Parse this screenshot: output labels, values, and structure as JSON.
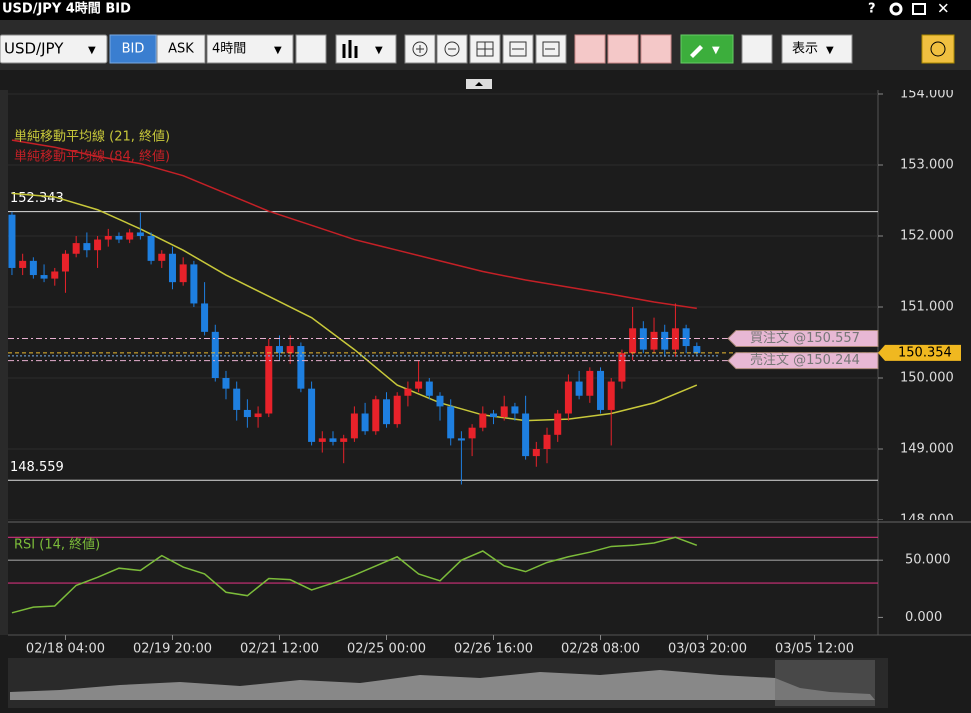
{
  "window": {
    "title": "USD/JPY 4時間 BID"
  },
  "toolbar": {
    "symbol": "USD/JPY",
    "bid": "BID",
    "ask": "ASK",
    "timeframe": "4時間",
    "view": "表示"
  },
  "chart_data": [
    {
      "type": "candlestick",
      "up_color": "#e8222a",
      "down_color": "#1e7fe0",
      "xlim": [
        -0.37,
        80.93
      ],
      "xticks": [
        {
          "value": 5,
          "label": "02/18 04:00"
        },
        {
          "value": 15,
          "label": "02/19 20:00"
        },
        {
          "value": 25,
          "label": "02/21 12:00"
        },
        {
          "value": 35,
          "label": "02/25 00:00"
        },
        {
          "value": 45,
          "label": "02/26 16:00"
        },
        {
          "value": 55,
          "label": "02/28 08:00"
        },
        {
          "value": 65,
          "label": "03/03 20:00"
        },
        {
          "value": 75,
          "label": "03/05 12:00"
        }
      ],
      "ylim": [
        148,
        154
      ],
      "yticks": [
        {
          "value": 148,
          "label": "148.000"
        },
        {
          "value": 149,
          "label": "149.000"
        },
        {
          "value": 150,
          "label": "150.000"
        },
        {
          "value": 151,
          "label": "151.000"
        },
        {
          "value": 152,
          "label": "152.000"
        },
        {
          "value": 153,
          "label": "153.000"
        },
        {
          "value": 154,
          "label": "154.000"
        }
      ],
      "ohlc": [
        [
          152.3,
          152.34,
          151.45,
          151.55
        ],
        [
          151.55,
          151.75,
          151.45,
          151.65
        ],
        [
          151.65,
          151.7,
          151.4,
          151.45
        ],
        [
          151.45,
          151.6,
          151.35,
          151.4
        ],
        [
          151.4,
          151.55,
          151.3,
          151.5
        ],
        [
          151.5,
          151.8,
          151.2,
          151.75
        ],
        [
          151.75,
          152.0,
          151.7,
          151.9
        ],
        [
          151.9,
          152.05,
          151.7,
          151.8
        ],
        [
          151.8,
          152.0,
          151.55,
          151.95
        ],
        [
          151.95,
          152.1,
          151.85,
          152.0
        ],
        [
          152.0,
          152.05,
          151.9,
          151.95
        ],
        [
          151.95,
          152.1,
          151.9,
          152.05
        ],
        [
          152.05,
          152.33,
          151.95,
          152.0
        ],
        [
          152.0,
          152.05,
          151.6,
          151.65
        ],
        [
          151.65,
          151.8,
          151.55,
          151.75
        ],
        [
          151.75,
          151.85,
          151.25,
          151.35
        ],
        [
          151.35,
          151.7,
          151.3,
          151.6
        ],
        [
          151.6,
          151.65,
          151.0,
          151.05
        ],
        [
          151.05,
          151.35,
          150.6,
          150.65
        ],
        [
          150.65,
          150.75,
          149.95,
          150.0
        ],
        [
          150.0,
          150.1,
          149.7,
          149.85
        ],
        [
          149.85,
          149.95,
          149.4,
          149.55
        ],
        [
          149.55,
          149.7,
          149.3,
          149.45
        ],
        [
          149.45,
          149.6,
          149.3,
          149.5
        ],
        [
          149.5,
          150.55,
          149.45,
          150.45
        ],
        [
          150.45,
          150.6,
          150.25,
          150.35
        ],
        [
          150.35,
          150.6,
          150.2,
          150.45
        ],
        [
          150.45,
          150.5,
          149.8,
          149.85
        ],
        [
          149.85,
          149.95,
          149.05,
          149.1
        ],
        [
          149.1,
          149.25,
          148.95,
          149.15
        ],
        [
          149.15,
          149.25,
          149.05,
          149.1
        ],
        [
          149.1,
          149.2,
          148.8,
          149.15
        ],
        [
          149.15,
          149.6,
          149.1,
          149.5
        ],
        [
          149.5,
          149.65,
          149.2,
          149.25
        ],
        [
          149.25,
          149.75,
          149.2,
          149.7
        ],
        [
          149.7,
          149.8,
          149.3,
          149.35
        ],
        [
          149.35,
          149.8,
          149.3,
          149.75
        ],
        [
          149.75,
          149.95,
          149.6,
          149.85
        ],
        [
          149.85,
          150.25,
          149.8,
          149.95
        ],
        [
          149.95,
          150.0,
          149.7,
          149.75
        ],
        [
          149.75,
          149.8,
          149.4,
          149.6
        ],
        [
          149.6,
          149.7,
          149.05,
          149.15
        ],
        [
          149.15,
          149.25,
          148.5,
          149.12
        ],
        [
          149.15,
          149.35,
          148.9,
          149.3
        ],
        [
          149.3,
          149.6,
          149.25,
          149.5
        ],
        [
          149.5,
          149.55,
          149.35,
          149.45
        ],
        [
          149.45,
          149.75,
          149.4,
          149.6
        ],
        [
          149.6,
          149.65,
          149.4,
          149.5
        ],
        [
          149.5,
          149.75,
          148.85,
          148.9
        ],
        [
          148.9,
          149.1,
          148.75,
          149.0
        ],
        [
          149.0,
          149.3,
          148.8,
          149.2
        ],
        [
          149.2,
          149.55,
          149.1,
          149.5
        ],
        [
          149.5,
          150.05,
          149.4,
          149.95
        ],
        [
          149.95,
          150.1,
          149.7,
          149.75
        ],
        [
          149.75,
          150.15,
          149.65,
          150.1
        ],
        [
          150.1,
          150.15,
          149.5,
          149.55
        ],
        [
          149.55,
          150.0,
          149.05,
          149.95
        ],
        [
          149.95,
          150.4,
          149.85,
          150.35
        ],
        [
          150.35,
          151.0,
          150.25,
          150.7
        ],
        [
          150.7,
          150.8,
          150.35,
          150.4
        ],
        [
          150.4,
          150.85,
          150.35,
          150.65
        ],
        [
          150.65,
          150.75,
          150.3,
          150.4
        ],
        [
          150.4,
          151.05,
          150.3,
          150.7
        ],
        [
          150.7,
          150.75,
          150.35,
          150.45
        ],
        [
          150.45,
          150.5,
          150.32,
          150.35
        ]
      ],
      "series": [
        {
          "name": "単純移動平均線 (21, 終値)",
          "color": "#c8c83a",
          "x": [
            0,
            4,
            8,
            12,
            16,
            20,
            24,
            28,
            32,
            36,
            40,
            44,
            48,
            52,
            56,
            60,
            64
          ],
          "values": [
            152.6,
            152.55,
            152.37,
            152.1,
            151.8,
            151.45,
            151.15,
            150.85,
            150.4,
            149.9,
            149.65,
            149.48,
            149.4,
            149.42,
            149.5,
            149.65,
            149.9
          ]
        },
        {
          "name": "単純移動平均線 (84, 終値)",
          "color": "#c42026",
          "x": [
            0,
            4,
            8,
            12,
            16,
            20,
            24,
            28,
            32,
            36,
            40,
            44,
            48,
            52,
            56,
            60,
            64
          ],
          "values": [
            153.35,
            153.25,
            153.12,
            153.02,
            152.85,
            152.6,
            152.35,
            152.15,
            151.95,
            151.8,
            151.65,
            151.5,
            151.38,
            151.28,
            151.18,
            151.07,
            150.98
          ]
        }
      ],
      "hlines": [
        152.343,
        148.559
      ],
      "orders": [
        {
          "label": "買注文 @150.557",
          "price": 150.557
        },
        {
          "label": "売注文 @150.244",
          "price": 150.244
        }
      ],
      "last": 150.354
    },
    {
      "type": "line",
      "xlim": [
        -0.37,
        80.93
      ],
      "ylim": [
        -11,
        79
      ],
      "yticks": [
        {
          "value": 0,
          "label": "0.000"
        },
        {
          "value": 50,
          "label": "50.000"
        }
      ],
      "levels": [
        30,
        50,
        70
      ],
      "series": [
        {
          "name": "RSI (14, 終値)",
          "color": "#7cbc3a",
          "x": [
            0,
            2,
            4,
            6,
            8,
            10,
            12,
            14,
            16,
            18,
            20,
            22,
            24,
            26,
            28,
            30,
            32,
            34,
            36,
            38,
            40,
            42,
            44,
            46,
            48,
            50,
            52,
            54,
            56,
            58,
            60,
            62,
            64
          ],
          "values": [
            4,
            9,
            10,
            28,
            35,
            43,
            41,
            54,
            44,
            38,
            22,
            19,
            34,
            33,
            24,
            30,
            37,
            45,
            53,
            38,
            32,
            50,
            58,
            45,
            40,
            48,
            53,
            57,
            62,
            63,
            65,
            70,
            63
          ]
        }
      ]
    }
  ]
}
